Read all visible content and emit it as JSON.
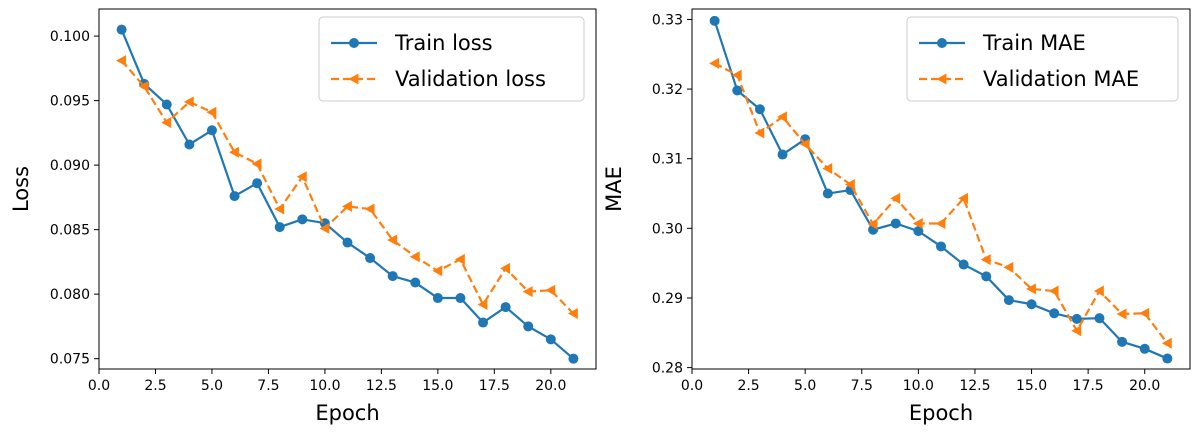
{
  "chart_data": [
    {
      "type": "line",
      "xlabel": "Epoch",
      "ylabel": "Loss",
      "xlim": [
        0,
        22
      ],
      "ylim": [
        0.0742,
        0.1021
      ],
      "xticks": [
        "0.0",
        "2.5",
        "5.0",
        "7.5",
        "10.0",
        "12.5",
        "15.0",
        "17.5",
        "20.0"
      ],
      "yticks": [
        "0.075",
        "0.080",
        "0.085",
        "0.090",
        "0.095",
        "0.100"
      ],
      "legend_position": "top-right",
      "x": [
        1,
        2,
        3,
        4,
        5,
        6,
        7,
        8,
        9,
        10,
        11,
        12,
        13,
        14,
        15,
        16,
        17,
        18,
        19,
        20,
        21
      ],
      "series": [
        {
          "name": "Train loss",
          "color": "#1f77b4",
          "style": "solid",
          "marker": "circle",
          "values": [
            0.1005,
            0.0963,
            0.0947,
            0.0916,
            0.0927,
            0.0876,
            0.0886,
            0.0852,
            0.0858,
            0.0855,
            0.084,
            0.0828,
            0.0814,
            0.0809,
            0.0797,
            0.0797,
            0.0778,
            0.079,
            0.0775,
            0.0765,
            0.075
          ]
        },
        {
          "name": "Validation loss",
          "color": "#ff7f0e",
          "style": "dashed",
          "marker": "triangle-left",
          "values": [
            0.0981,
            0.0961,
            0.0933,
            0.0949,
            0.0941,
            0.091,
            0.0901,
            0.0866,
            0.0891,
            0.0851,
            0.0868,
            0.0866,
            0.0842,
            0.0829,
            0.0818,
            0.0827,
            0.0792,
            0.082,
            0.0802,
            0.0803,
            0.0785
          ]
        }
      ]
    },
    {
      "type": "line",
      "xlabel": "Epoch",
      "ylabel": "MAE",
      "xlim": [
        0,
        22
      ],
      "ylim": [
        0.2798,
        0.3315
      ],
      "xticks": [
        "0.0",
        "2.5",
        "5.0",
        "7.5",
        "10.0",
        "12.5",
        "15.0",
        "17.5",
        "20.0"
      ],
      "yticks": [
        "0.28",
        "0.29",
        "0.30",
        "0.31",
        "0.32",
        "0.33"
      ],
      "legend_position": "top-right",
      "x": [
        1,
        2,
        3,
        4,
        5,
        6,
        7,
        8,
        9,
        10,
        11,
        12,
        13,
        14,
        15,
        16,
        17,
        18,
        19,
        20,
        21
      ],
      "series": [
        {
          "name": "Train MAE",
          "color": "#1f77b4",
          "style": "solid",
          "marker": "circle",
          "values": [
            0.3298,
            0.3198,
            0.3171,
            0.3106,
            0.3128,
            0.305,
            0.3055,
            0.2998,
            0.3007,
            0.2996,
            0.2974,
            0.2948,
            0.2931,
            0.2897,
            0.2891,
            0.2878,
            0.287,
            0.2871,
            0.2837,
            0.2827,
            0.2813
          ]
        },
        {
          "name": "Validation MAE",
          "color": "#ff7f0e",
          "style": "dashed",
          "marker": "triangle-left",
          "values": [
            0.3237,
            0.322,
            0.3137,
            0.316,
            0.3121,
            0.3086,
            0.3063,
            0.3006,
            0.3043,
            0.3007,
            0.3007,
            0.3043,
            0.2955,
            0.2944,
            0.2913,
            0.291,
            0.2853,
            0.291,
            0.2877,
            0.2878,
            0.2835
          ]
        }
      ]
    }
  ]
}
